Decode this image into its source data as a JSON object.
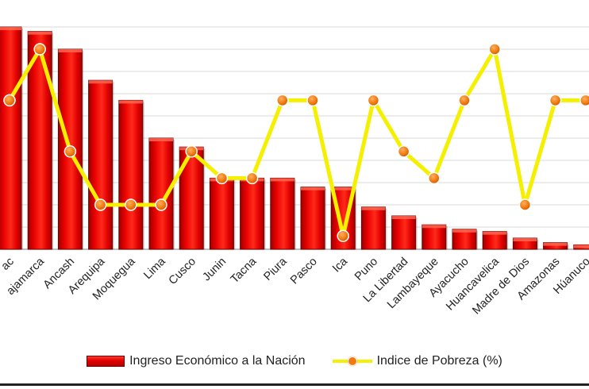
{
  "chart_data": {
    "type": "bar",
    "categories": [
      "Apurimac",
      "Cajamarca",
      "Ancash",
      "Arequipa",
      "Moquegua",
      "Lima",
      "Cusco",
      "Junin",
      "Tacna",
      "Piura",
      "Pasco",
      "Ica",
      "Puno",
      "La Libertad",
      "Lambayeque",
      "Ayacucho",
      "Huancavelica",
      "Madre de Dios",
      "Amazonas",
      "Húanuco"
    ],
    "category_labels": [
      "ac",
      "ajamarca",
      "Ancash",
      "Arequipa",
      "Moquegua",
      "Lima",
      "Cusco",
      "Junin",
      "Tacna",
      "Piura",
      "Pasco",
      "Ica",
      "Puno",
      "La Libertad",
      "Lambayeque",
      "Ayacucho",
      "Huancavelica",
      "Madre de Dios",
      "Amazonas",
      "Húanuco"
    ],
    "series": [
      {
        "name": "Ingreso Económico a la Nación",
        "type": "bar",
        "values": [
          100,
          98,
          90,
          76,
          67,
          50,
          46,
          32,
          32,
          32,
          28,
          28,
          19,
          15,
          11,
          9,
          8,
          5,
          3,
          2
        ]
      },
      {
        "name": "Indice de Pobreza (%)",
        "type": "line",
        "values": [
          67,
          90,
          44,
          20,
          20,
          20,
          44,
          32,
          32,
          67,
          67,
          6,
          67,
          44,
          32,
          67,
          90,
          20,
          67,
          67
        ]
      }
    ],
    "ylim": [
      0,
      100
    ],
    "grid": true,
    "legend_position": "bottom",
    "colors": {
      "bar_top": "#ff3a2a",
      "bar_mid": "#e00000",
      "bar_bottom": "#b80000",
      "bar_edge": "#6e0000",
      "line": "#f5f000",
      "marker": "#f07a10",
      "grid": "#d9d9d9",
      "axis": "#9a9a9a"
    }
  }
}
